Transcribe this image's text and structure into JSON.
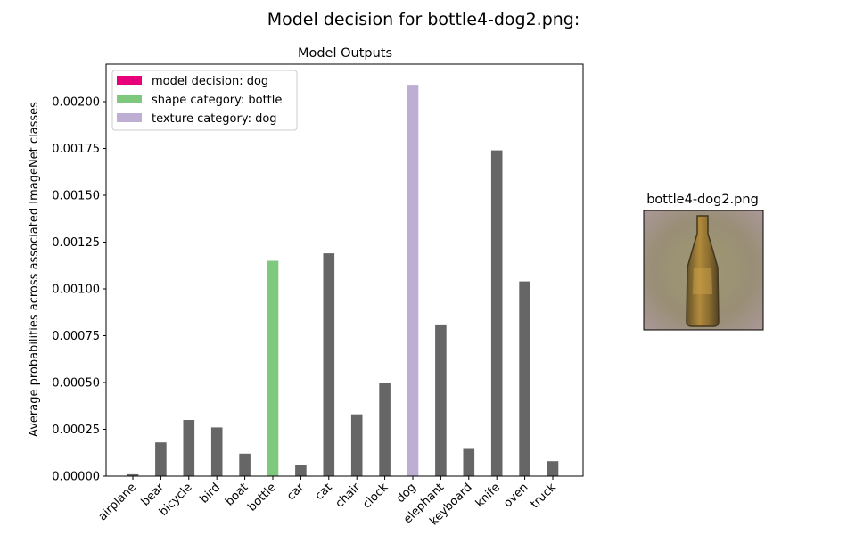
{
  "figure": {
    "suptitle": "Model decision for bottle4-dog2.png:"
  },
  "chart_data": {
    "type": "bar",
    "title": "Model Outputs",
    "xlabel": "",
    "ylabel": "Average probabilities across associated ImageNet classes",
    "categories": [
      "airplane",
      "bear",
      "bicycle",
      "bird",
      "boat",
      "bottle",
      "car",
      "cat",
      "chair",
      "clock",
      "dog",
      "elephant",
      "keyboard",
      "knife",
      "oven",
      "truck"
    ],
    "values": [
      1e-05,
      0.00018,
      0.0003,
      0.00026,
      0.00012,
      0.00115,
      6e-05,
      0.00119,
      0.00033,
      0.0005,
      0.00209,
      0.00081,
      0.00015,
      0.00174,
      0.00104,
      8e-05
    ],
    "ylim": [
      0,
      0.0022
    ],
    "yticks": [
      0,
      0.00025,
      0.0005,
      0.00075,
      0.001,
      0.00125,
      0.0015,
      0.00175,
      0.002
    ],
    "ytick_labels": [
      "0.00000",
      "0.00025",
      "0.00050",
      "0.00075",
      "0.00100",
      "0.00125",
      "0.00150",
      "0.00175",
      "0.00200"
    ],
    "grid": false,
    "legend_position": "top-left",
    "legend": [
      {
        "label": "model decision: dog",
        "color": "#e8007a"
      },
      {
        "label": "shape category: bottle",
        "color": "#7fc97f"
      },
      {
        "label": "texture category: dog",
        "color": "#beaed4"
      }
    ],
    "colors": {
      "default": "#666666",
      "shape": "#7fc97f",
      "texture": "#beaed4",
      "decision": "#e8007a"
    },
    "shape_category": "bottle",
    "texture_category": "dog"
  },
  "image_panel": {
    "title": "bottle4-dog2.png",
    "description_icon": "stylized-bottle-image"
  }
}
